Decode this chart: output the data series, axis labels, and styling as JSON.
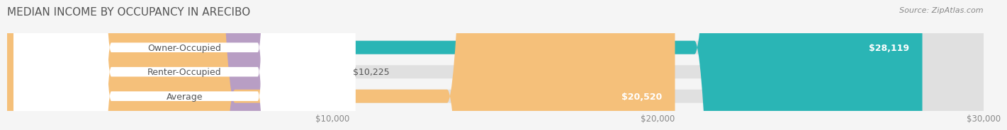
{
  "title": "MEDIAN INCOME BY OCCUPANCY IN ARECIBO",
  "source_text": "Source: ZipAtlas.com",
  "categories": [
    "Owner-Occupied",
    "Renter-Occupied",
    "Average"
  ],
  "values": [
    28119,
    10225,
    20520
  ],
  "bar_colors": [
    "#2ab5b5",
    "#b89ec4",
    "#f5c07a"
  ],
  "bar_bg_color": "#e0e0e0",
  "x_max": 30000,
  "x_ticks": [
    10000,
    20000,
    30000
  ],
  "x_tick_labels": [
    "$10,000",
    "$20,000",
    "$30,000"
  ],
  "value_labels": [
    "$28,119",
    "$10,225",
    "$20,520"
  ],
  "background_color": "#f5f5f5",
  "bar_height": 0.55,
  "title_fontsize": 11,
  "label_fontsize": 9,
  "tick_fontsize": 8.5,
  "source_fontsize": 8
}
